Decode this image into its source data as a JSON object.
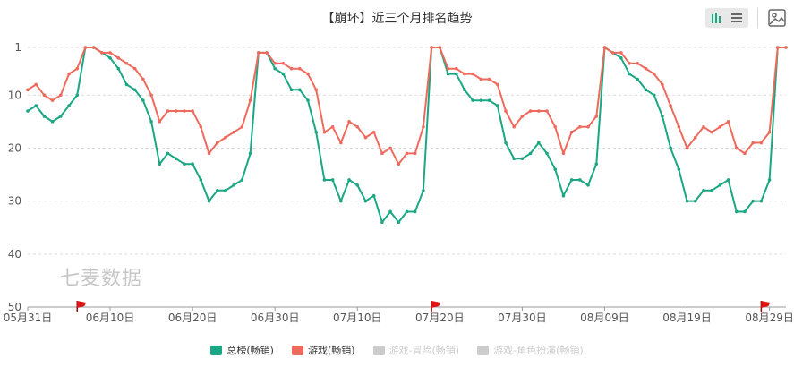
{
  "chart_data": {
    "type": "line",
    "title": "【崩坏】近三个月排名趋势",
    "y_inverted": true,
    "ylim": [
      1,
      50
    ],
    "yticks": [
      1,
      10,
      20,
      30,
      40,
      50
    ],
    "xlim": [
      "2023-05-31",
      "2023-08-31"
    ],
    "xtick_labels": [
      "05月31日",
      "06月10日",
      "06月20日",
      "06月30日",
      "07月10日",
      "07月20日",
      "07月30日",
      "08月09日",
      "08月19日",
      "08月29日"
    ],
    "flags": [
      {
        "x": "2023-06-06"
      },
      {
        "x": "2023-07-19"
      },
      {
        "x": "2023-08-28"
      }
    ],
    "series": [
      {
        "name": "总榜(畅销)",
        "color": "#1aa784",
        "values": [
          13,
          12,
          14,
          15,
          14,
          12,
          10,
          1,
          1,
          2,
          3,
          5,
          8,
          9,
          11,
          15,
          23,
          21,
          22,
          23,
          23,
          26,
          30,
          28,
          28,
          27,
          26,
          21,
          2,
          2,
          5,
          6,
          9,
          9,
          11,
          17,
          26,
          26,
          30,
          26,
          27,
          30,
          29,
          34,
          32,
          34,
          32,
          32,
          28,
          1,
          1,
          6,
          6,
          9,
          11,
          11,
          11,
          12,
          19,
          22,
          22,
          21,
          19,
          21,
          24,
          29,
          26,
          26,
          27,
          23,
          1,
          2,
          3,
          6,
          7,
          9,
          10,
          14,
          20,
          24,
          30,
          30,
          28,
          28,
          27,
          26,
          32,
          32,
          30,
          30,
          26,
          1,
          1
        ]
      },
      {
        "name": "游戏(畅销)",
        "color": "#ef6a5d",
        "values": [
          9,
          8,
          10,
          11,
          10,
          6,
          5,
          1,
          1,
          2,
          2,
          3,
          4,
          5,
          7,
          10,
          15,
          13,
          13,
          13,
          13,
          16,
          21,
          19,
          18,
          17,
          16,
          11,
          2,
          2,
          4,
          4,
          5,
          5,
          6,
          9,
          17,
          16,
          19,
          15,
          16,
          18,
          17,
          21,
          20,
          23,
          21,
          21,
          16,
          1,
          1,
          5,
          5,
          6,
          6,
          7,
          7,
          8,
          13,
          16,
          14,
          13,
          13,
          13,
          16,
          21,
          17,
          16,
          16,
          14,
          1,
          2,
          2,
          4,
          4,
          5,
          6,
          8,
          12,
          16,
          20,
          18,
          16,
          17,
          16,
          15,
          20,
          21,
          19,
          19,
          17,
          1,
          1
        ]
      },
      {
        "name": "游戏-冒险(畅销)",
        "color": "#cccccc",
        "disabled": true,
        "values": []
      },
      {
        "name": "游戏-角色扮演(畅销)",
        "color": "#cccccc",
        "disabled": true,
        "values": []
      }
    ]
  },
  "watermark": "七麦数据",
  "toolbar": {
    "icons": [
      "bar-chart-icon",
      "line-list-icon",
      "save-image-icon"
    ]
  }
}
